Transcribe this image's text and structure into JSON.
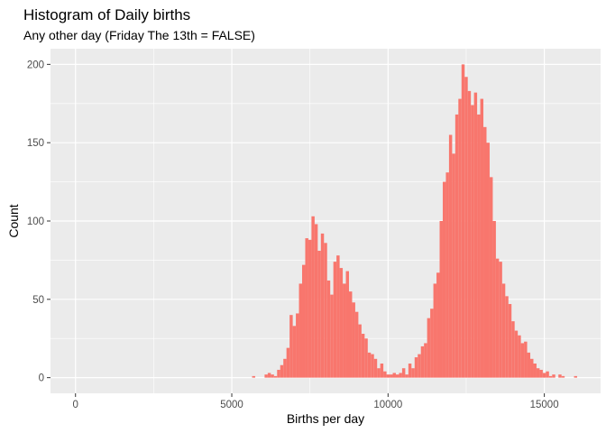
{
  "chart_data": {
    "type": "bar",
    "title": "Histogram of Daily births",
    "subtitle": "Any other day (Friday The 13th = FALSE)",
    "xlabel": "Births per day",
    "ylabel": "Count",
    "xlim": [
      -800,
      16800
    ],
    "ylim": [
      -10,
      210
    ],
    "xticks": [
      0,
      5000,
      10000,
      15000
    ],
    "yticks": [
      0,
      50,
      100,
      150,
      200
    ],
    "xtick_labels": [
      "0",
      "5000",
      "10000",
      "15000"
    ],
    "ytick_labels": [
      "0",
      "50",
      "100",
      "150",
      "200"
    ],
    "grid": true,
    "bar_color": "#F8766D",
    "panel_color": "#EBEBEB",
    "bin_width": 100,
    "bins": [
      [
        5700,
        1
      ],
      [
        6100,
        2
      ],
      [
        6200,
        3
      ],
      [
        6300,
        2
      ],
      [
        6400,
        1
      ],
      [
        6500,
        5
      ],
      [
        6600,
        8
      ],
      [
        6700,
        12
      ],
      [
        6800,
        19
      ],
      [
        6900,
        40
      ],
      [
        7000,
        33
      ],
      [
        7100,
        41
      ],
      [
        7200,
        60
      ],
      [
        7300,
        72
      ],
      [
        7400,
        89
      ],
      [
        7500,
        88
      ],
      [
        7600,
        103
      ],
      [
        7700,
        98
      ],
      [
        7800,
        81
      ],
      [
        7900,
        92
      ],
      [
        8000,
        86
      ],
      [
        8100,
        62
      ],
      [
        8200,
        53
      ],
      [
        8300,
        74
      ],
      [
        8400,
        78
      ],
      [
        8500,
        70
      ],
      [
        8600,
        60
      ],
      [
        8700,
        68
      ],
      [
        8800,
        55
      ],
      [
        8900,
        48
      ],
      [
        9000,
        42
      ],
      [
        9100,
        34
      ],
      [
        9200,
        28
      ],
      [
        9300,
        25
      ],
      [
        9400,
        16
      ],
      [
        9500,
        15
      ],
      [
        9600,
        12
      ],
      [
        9700,
        6
      ],
      [
        9800,
        9
      ],
      [
        9900,
        4
      ],
      [
        10000,
        2
      ],
      [
        10100,
        2
      ],
      [
        10200,
        3
      ],
      [
        10300,
        2
      ],
      [
        10400,
        3
      ],
      [
        10500,
        6
      ],
      [
        10600,
        2
      ],
      [
        10700,
        9
      ],
      [
        10800,
        6
      ],
      [
        10900,
        13
      ],
      [
        11000,
        15
      ],
      [
        11100,
        20
      ],
      [
        11200,
        22
      ],
      [
        11300,
        38
      ],
      [
        11400,
        44
      ],
      [
        11500,
        60
      ],
      [
        11600,
        67
      ],
      [
        11700,
        100
      ],
      [
        11800,
        125
      ],
      [
        11900,
        131
      ],
      [
        12000,
        155
      ],
      [
        12100,
        143
      ],
      [
        12200,
        168
      ],
      [
        12300,
        178
      ],
      [
        12400,
        200
      ],
      [
        12500,
        192
      ],
      [
        12600,
        183
      ],
      [
        12700,
        174
      ],
      [
        12800,
        182
      ],
      [
        12900,
        168
      ],
      [
        13000,
        178
      ],
      [
        13100,
        160
      ],
      [
        13200,
        150
      ],
      [
        13300,
        128
      ],
      [
        13400,
        100
      ],
      [
        13500,
        76
      ],
      [
        13600,
        74
      ],
      [
        13700,
        60
      ],
      [
        13800,
        52
      ],
      [
        13900,
        47
      ],
      [
        14000,
        36
      ],
      [
        14100,
        30
      ],
      [
        14200,
        27
      ],
      [
        14300,
        22
      ],
      [
        14400,
        23
      ],
      [
        14500,
        16
      ],
      [
        14600,
        12
      ],
      [
        14700,
        9
      ],
      [
        14800,
        6
      ],
      [
        14900,
        5
      ],
      [
        15000,
        3
      ],
      [
        15100,
        4
      ],
      [
        15200,
        1
      ],
      [
        15300,
        2
      ],
      [
        15500,
        2
      ],
      [
        15600,
        1
      ],
      [
        16000,
        1
      ]
    ]
  }
}
